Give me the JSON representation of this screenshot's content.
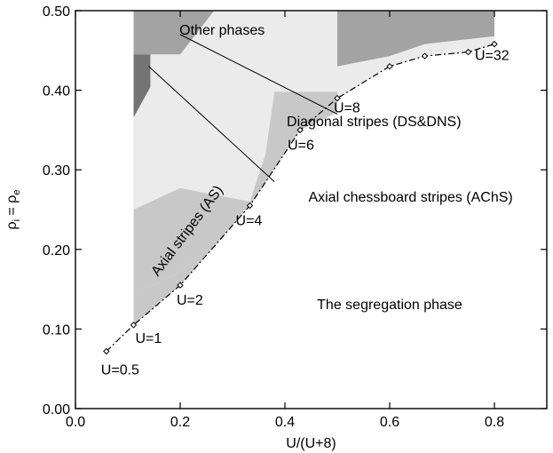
{
  "chart_data": {
    "type": "area",
    "title": "",
    "xlabel": "U/(U+8)",
    "ylabel": {
      "text": "ρ",
      "sub1": "i",
      "eq": " = ρ",
      "sub2": "e"
    },
    "xlim": [
      0,
      0.9
    ],
    "ylim": [
      0,
      0.5
    ],
    "grid": false,
    "x_ticks": [
      0.0,
      0.2,
      0.4,
      0.6,
      0.8
    ],
    "y_ticks": [
      0.0,
      0.1,
      0.2,
      0.3,
      0.4,
      0.5
    ],
    "x_tick_labels": [
      "0.0",
      "0.2",
      "0.4",
      "0.6",
      "0.8"
    ],
    "y_tick_labels": [
      "0.00",
      "0.10",
      "0.20",
      "0.30",
      "0.40",
      "0.50"
    ],
    "colors": {
      "segregation": "#ffffff",
      "outer_phase": "#ebebeb",
      "axial_stripes": "#c8c8c8",
      "diagonal_stripes": "#a3a3a3",
      "dark_patch": "#747474"
    },
    "boundary": {
      "x": [
        0.059,
        0.111,
        0.2,
        0.333,
        0.429,
        0.5,
        0.6,
        0.667,
        0.75,
        0.8
      ],
      "y": [
        0.072,
        0.105,
        0.155,
        0.255,
        0.35,
        0.39,
        0.43,
        0.443,
        0.448,
        0.458
      ]
    },
    "regions": [
      {
        "id": "outer_phase",
        "polygon": [
          [
            0.111,
            0.105
          ],
          [
            0.2,
            0.155
          ],
          [
            0.333,
            0.255
          ],
          [
            0.429,
            0.35
          ],
          [
            0.5,
            0.39
          ],
          [
            0.6,
            0.43
          ],
          [
            0.667,
            0.443
          ],
          [
            0.75,
            0.448
          ],
          [
            0.8,
            0.458
          ],
          [
            0.8,
            0.5
          ],
          [
            0.111,
            0.5
          ]
        ]
      },
      {
        "id": "axial_stripes",
        "polygon": [
          [
            0.111,
            0.143
          ],
          [
            0.2,
            0.172
          ],
          [
            0.278,
            0.22
          ],
          [
            0.333,
            0.26
          ],
          [
            0.363,
            0.32
          ],
          [
            0.38,
            0.398
          ],
          [
            0.5,
            0.398
          ],
          [
            0.5,
            0.372
          ],
          [
            0.429,
            0.35
          ],
          [
            0.333,
            0.255
          ],
          [
            0.2,
            0.155
          ],
          [
            0.111,
            0.105
          ],
          [
            0.111,
            0.143
          ]
        ]
      },
      {
        "id": "axial_stripes",
        "polygon": [
          [
            0.111,
            0.143
          ],
          [
            0.111,
            0.25
          ],
          [
            0.2,
            0.277
          ],
          [
            0.333,
            0.26
          ],
          [
            0.278,
            0.22
          ],
          [
            0.2,
            0.172
          ]
        ]
      },
      {
        "id": "diagonal_stripes",
        "polygon": [
          [
            0.111,
            0.5
          ],
          [
            0.111,
            0.445
          ],
          [
            0.2,
            0.445
          ],
          [
            0.265,
            0.5
          ]
        ]
      },
      {
        "id": "diagonal_stripes",
        "polygon": [
          [
            0.5,
            0.5
          ],
          [
            0.5,
            0.43
          ],
          [
            0.6,
            0.443
          ],
          [
            0.667,
            0.458
          ],
          [
            0.8,
            0.468
          ],
          [
            0.8,
            0.5
          ]
        ]
      },
      {
        "id": "dark_patch",
        "polygon": [
          [
            0.111,
            0.366
          ],
          [
            0.111,
            0.445
          ],
          [
            0.143,
            0.445
          ],
          [
            0.143,
            0.404
          ]
        ]
      }
    ],
    "series": [
      {
        "name": "",
        "marker": "diamond",
        "x": [
          0.059,
          0.111,
          0.2,
          0.333,
          0.429,
          0.5,
          0.6,
          0.667,
          0.75,
          0.8
        ],
        "y": [
          0.072,
          0.105,
          0.155,
          0.255,
          0.35,
          0.39,
          0.43,
          0.443,
          0.448,
          0.458
        ]
      }
    ],
    "point_labels": [
      {
        "text": "U=0.5",
        "x": 0.059,
        "y": 0.072
      },
      {
        "text": "U=1",
        "x": 0.111,
        "y": 0.105
      },
      {
        "text": "U=2",
        "x": 0.2,
        "y": 0.155
      },
      {
        "text": "U=4",
        "x": 0.333,
        "y": 0.255
      },
      {
        "text": "U=6",
        "x": 0.429,
        "y": 0.35
      },
      {
        "text": "U=8",
        "x": 0.5,
        "y": 0.39
      },
      {
        "text": "U=32",
        "x": 0.8,
        "y": 0.458
      }
    ],
    "region_labels": [
      {
        "text": "Other phases",
        "x": 0.28,
        "y": 0.47
      },
      {
        "text": "The segregation phase",
        "x": 0.6,
        "y": 0.125
      }
    ],
    "rotated_labels": [
      {
        "text": "Axial stripes (AS)",
        "x": 0.22,
        "y": 0.22,
        "angle_deg": -53
      }
    ],
    "annotations": [
      {
        "text": "Diagonal stripes (DS&DNS)",
        "text_at": [
          0.57,
          0.355
        ],
        "line_from": [
          0.2,
          0.47
        ],
        "line_to": [
          0.5,
          0.37
        ]
      },
      {
        "text": "Axial chessboard stripes (AChS)",
        "text_at": [
          0.64,
          0.26
        ],
        "line_from": [
          0.14,
          0.43
        ],
        "line_to": [
          0.38,
          0.285
        ]
      }
    ]
  }
}
